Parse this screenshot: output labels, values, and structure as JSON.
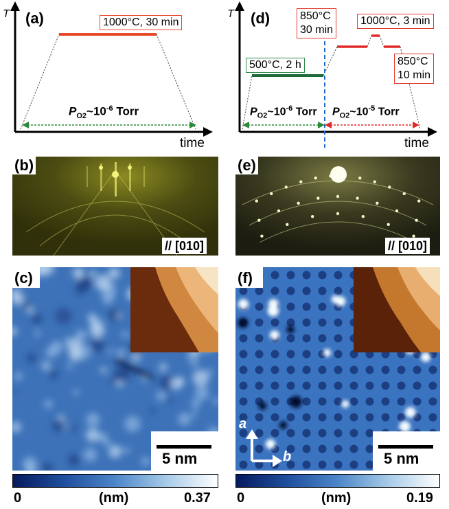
{
  "panels": {
    "a": "(a)",
    "b": "(b)",
    "c": "(c)",
    "d": "(d)",
    "e": "(e)",
    "f": "(f)"
  },
  "axes": {
    "y": "T",
    "x": "time"
  },
  "left_diagram": {
    "hold_box": "1000°C, 30 min",
    "pressure": "P",
    "pressure_sub": "O2",
    "pressure_val": "~10",
    "pressure_exp": "-6",
    "pressure_unit": " Torr"
  },
  "right_diagram": {
    "box1": "500°C, 2 h",
    "box2_line1": "850°C",
    "box2_line2": "30 min",
    "box3": "1000°C, 3 min",
    "box4_line1": "850°C",
    "box4_line2": "10 min",
    "pressure_left": {
      "p": "P",
      "sub": "O2",
      "val": "~10",
      "exp": "-6",
      "unit": " Torr"
    },
    "pressure_right": {
      "p": "P",
      "sub": "O2",
      "val": "~10",
      "exp": "-5",
      "unit": " Torr"
    }
  },
  "rheed": {
    "orientation_b": "// [010]",
    "orientation_e": "// [010]"
  },
  "stm": {
    "scale_c": "5 nm",
    "scale_f": "5 nm",
    "crystal_axis_a": "a",
    "crystal_axis_b": "b"
  },
  "colorbars": {
    "left": {
      "min": "0",
      "unit": "(nm)",
      "max": "0.37"
    },
    "right": {
      "min": "0",
      "unit": "(nm)",
      "max": "0.19"
    }
  },
  "colors": {
    "red_line": "#e8472a",
    "green_line": "#1e6b3a",
    "red_box": "#e03a2a",
    "green_box": "#2e8b4a",
    "blue_dashed": "#1f6fc9",
    "stm_blue": "#2f63ad"
  }
}
